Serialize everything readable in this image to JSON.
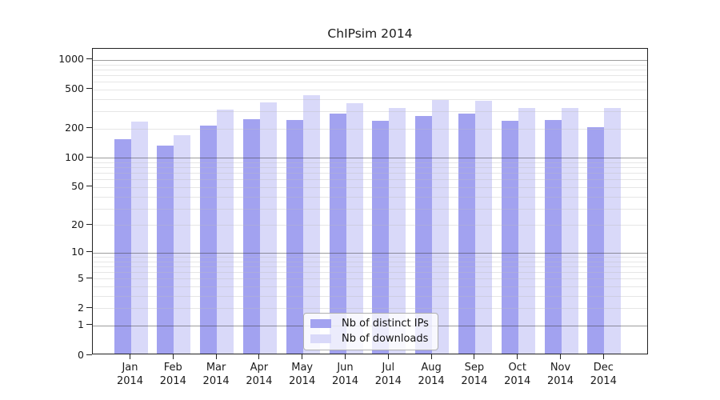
{
  "chart_data": {
    "type": "bar",
    "title": "ChIPsim 2014",
    "categories": [
      "Jan",
      "Feb",
      "Mar",
      "Apr",
      "May",
      "Jun",
      "Jul",
      "Aug",
      "Sep",
      "Oct",
      "Nov",
      "Dec"
    ],
    "category_year": "2014",
    "series": [
      {
        "name": "Nb of distinct IPs",
        "color": "#a2a2f0",
        "values": [
          150,
          130,
          205,
          240,
          235,
          275,
          230,
          260,
          275,
          230,
          235,
          200
        ]
      },
      {
        "name": "Nb of downloads",
        "color": "#d9d9f9",
        "values": [
          225,
          165,
          300,
          355,
          420,
          350,
          315,
          380,
          370,
          315,
          315,
          310
        ]
      }
    ],
    "y_axis": {
      "scale": "log1p",
      "tick_labels": [
        0,
        1,
        2,
        5,
        10,
        20,
        50,
        100,
        200,
        500,
        1000
      ],
      "range": [
        0,
        1300
      ],
      "grid": true
    },
    "legend_position": "bottom-center",
    "colors": {
      "grid_major": "#999999",
      "grid_minor": "#e8e8e8",
      "axis": "#222222",
      "background": "#ffffff"
    }
  }
}
